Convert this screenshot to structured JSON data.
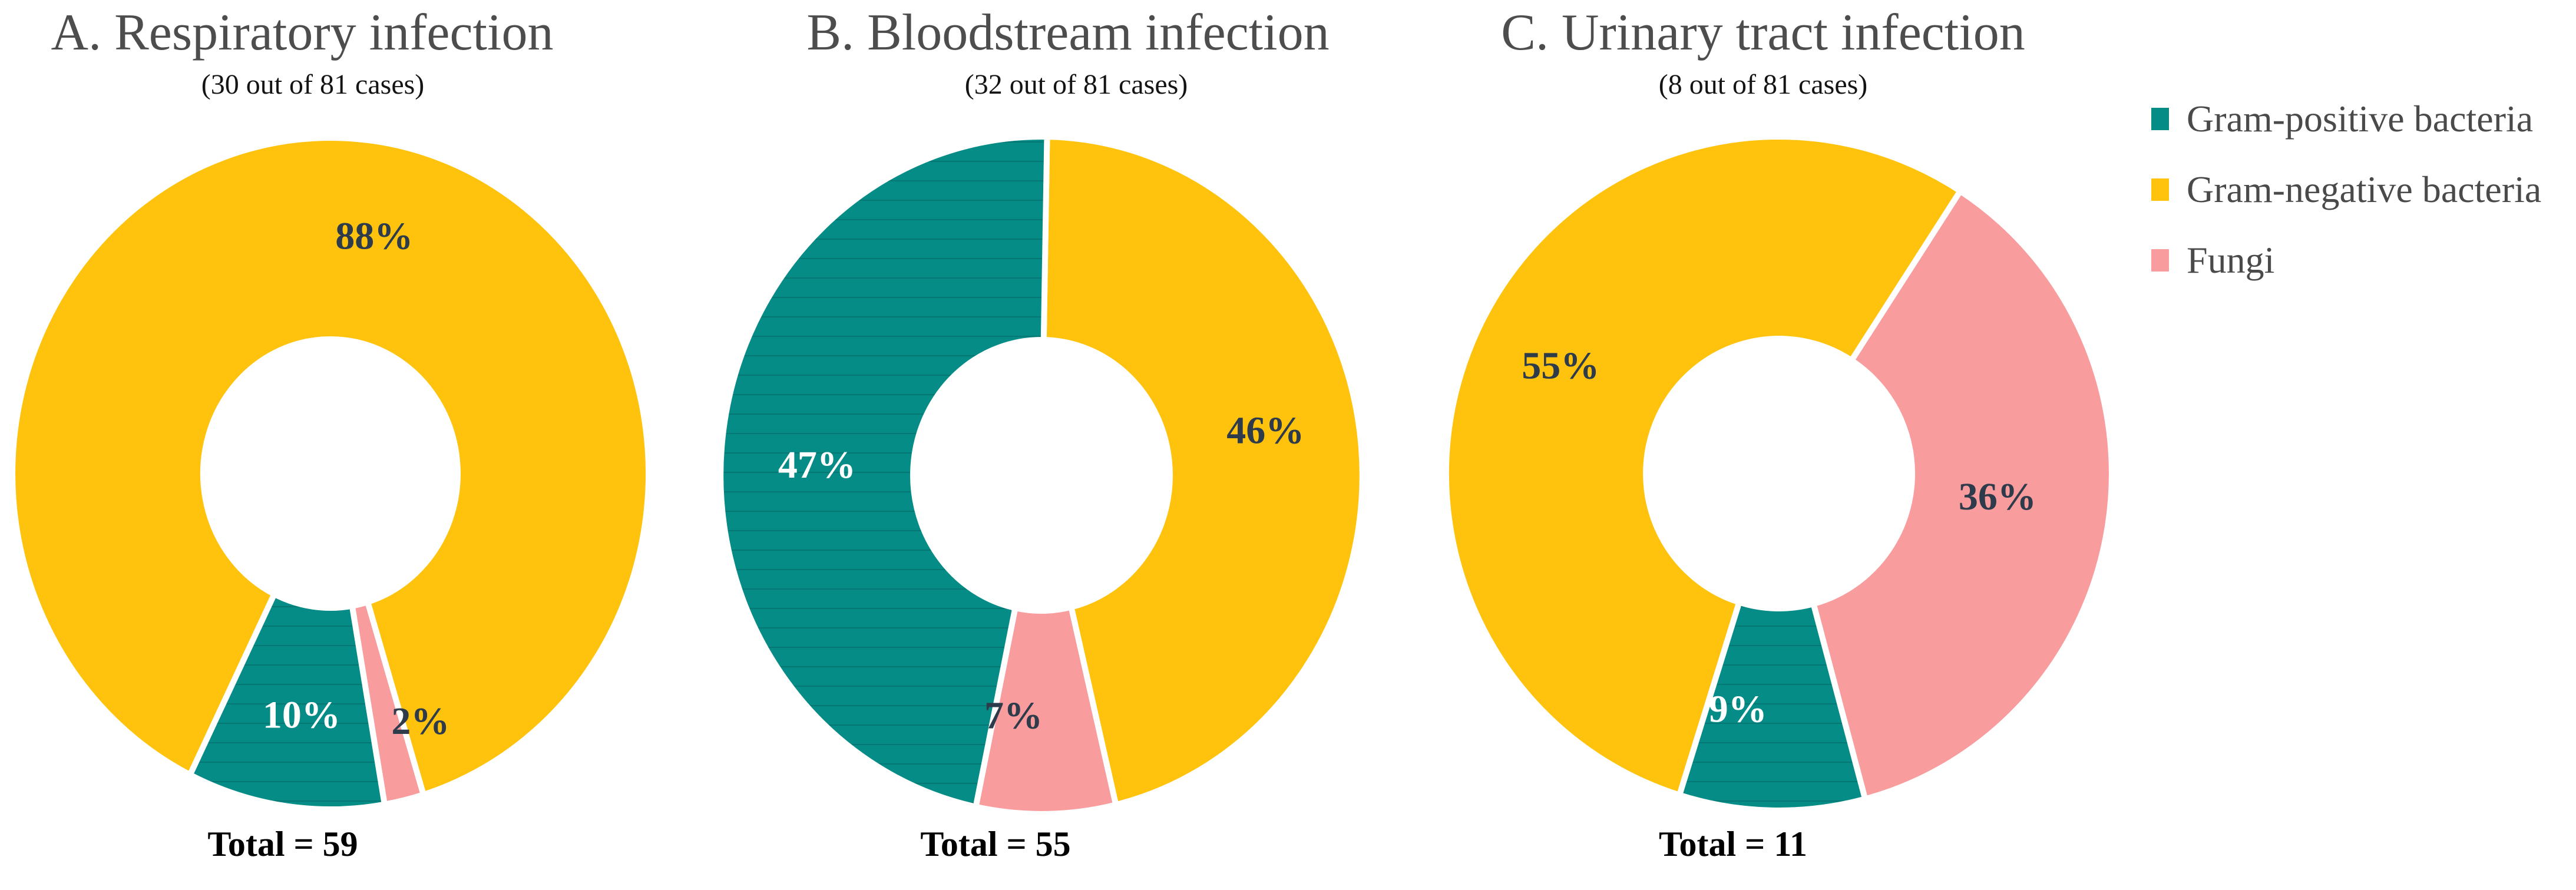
{
  "figure": {
    "background_color": "#FFFFFF",
    "palette": {
      "gram_positive": "#068C86",
      "gram_negative": "#FFC30D",
      "fungi": "#F99C9D",
      "label_dark": "#2E3B4B",
      "label_light": "#FFFFFF",
      "title_color": "#4D4D4D",
      "total_color": "#000000",
      "stripe_overlay": "rgba(0,0,0,0.14)"
    },
    "legend": {
      "position": "right",
      "items": [
        {
          "label": "Gram-positive bacteria",
          "color_key": "gram_positive"
        },
        {
          "label": "Gram-negative bacteria",
          "color_key": "gram_negative"
        },
        {
          "label": "Fungi",
          "color_key": "fungi"
        }
      ]
    }
  },
  "chart_data": [
    {
      "type": "donut",
      "panel": "A",
      "title": "A. Respiratory infection",
      "subtitle": "(30 out of 81 cases)",
      "total": 59,
      "total_label": "Total = 59",
      "categories": [
        "Gram-positive bacteria",
        "Gram-negative bacteria",
        "Fungi"
      ],
      "values_percent": {
        "gram_positive": 10,
        "gram_negative": 88,
        "fungi": 2
      },
      "slices": [
        {
          "category": "Fungi",
          "color_key": "fungi",
          "percent": 2,
          "label": "2%",
          "start_angle": 163,
          "end_angle": 170.2,
          "label_angle": 159,
          "label_r": 0.79,
          "label_color": "dark"
        },
        {
          "category": "Gram-positive bacteria",
          "color_key": "gram_positive",
          "percent": 10,
          "label": "10%",
          "start_angle": 170.2,
          "end_angle": 206.2,
          "label_angle": 187.2,
          "label_r": 0.725,
          "label_color": "light"
        },
        {
          "category": "Gram-negative bacteria",
          "color_key": "gram_negative",
          "percent": 88,
          "label": "88%",
          "start_angle": 206.2,
          "end_angle": 523,
          "label_angle": 11,
          "label_r": 0.72,
          "label_color": "dark"
        }
      ]
    },
    {
      "type": "donut",
      "panel": "B",
      "title": "B. Bloodstream infection",
      "subtitle": "(32 out of 81 cases)",
      "total": 55,
      "total_label": "Total = 55",
      "categories": [
        "Gram-positive bacteria",
        "Gram-negative bacteria",
        "Fungi"
      ],
      "values_percent": {
        "gram_positive": 47,
        "gram_negative": 46,
        "fungi": 7
      },
      "slices": [
        {
          "category": "Gram-negative bacteria",
          "color_key": "gram_negative",
          "percent": 46,
          "label": "46%",
          "start_angle": 1,
          "end_angle": 166.6,
          "label_angle": 79.3,
          "label_r": 0.71,
          "label_color": "dark"
        },
        {
          "category": "Fungi",
          "color_key": "fungi",
          "percent": 7,
          "label": "7%",
          "start_angle": 166.6,
          "end_angle": 191.8,
          "label_angle": 187,
          "label_r": 0.715,
          "label_color": "dark"
        },
        {
          "category": "Gram-positive bacteria",
          "color_key": "gram_positive",
          "percent": 47,
          "label": "47%",
          "start_angle": 191.8,
          "end_angle": 361,
          "label_angle": 272.5,
          "label_r": 0.7,
          "label_color": "light"
        }
      ]
    },
    {
      "type": "donut",
      "panel": "C",
      "title": "C. Urinary tract infection",
      "subtitle": "(8 out of 81 cases)",
      "total": 11,
      "total_label": "Total = 11",
      "categories": [
        "Gram-positive bacteria",
        "Gram-negative bacteria",
        "Fungi"
      ],
      "values_percent": {
        "gram_positive": 9,
        "gram_negative": 55,
        "fungi": 36
      },
      "slices": [
        {
          "category": "Fungi",
          "color_key": "fungi",
          "percent": 36,
          "label": "36%",
          "start_angle": 33,
          "end_angle": 165,
          "label_angle": 96,
          "label_r": 0.66,
          "label_color": "dark"
        },
        {
          "category": "Gram-positive bacteria",
          "color_key": "gram_positive",
          "percent": 9,
          "label": "9%",
          "start_angle": 165,
          "end_angle": 197.4,
          "label_angle": 190,
          "label_r": 0.71,
          "label_color": "light"
        },
        {
          "category": "Gram-negative bacteria",
          "color_key": "gram_negative",
          "percent": 55,
          "label": "55%",
          "start_angle": 197.4,
          "end_angle": 393,
          "label_angle": 296,
          "label_r": 0.73,
          "label_color": "dark"
        }
      ]
    }
  ]
}
